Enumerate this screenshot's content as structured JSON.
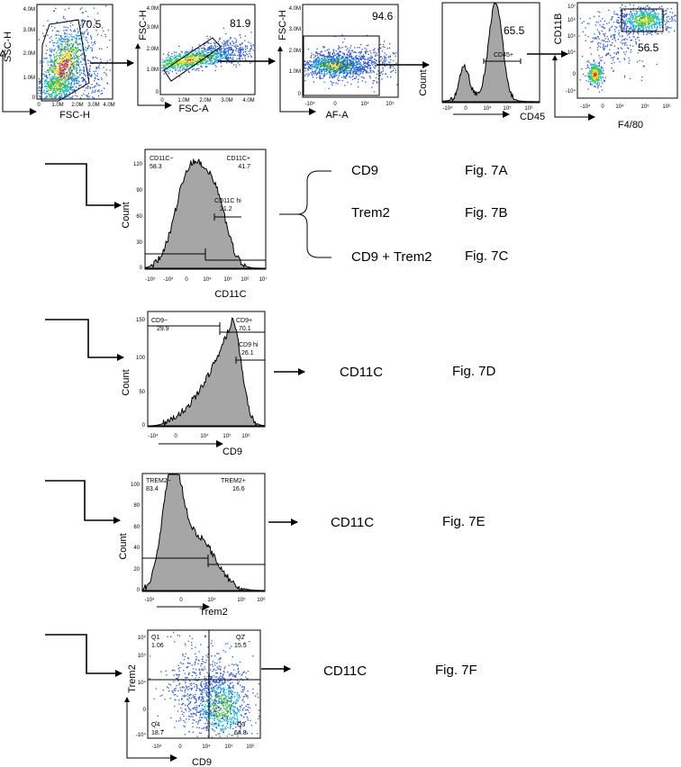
{
  "colors": {
    "dot_blue": "#2f59c8",
    "dot_cyan": "#1fb7d6",
    "dot_green": "#49c24a",
    "dot_yellow": "#e7da2d",
    "dot_red": "#e23a25",
    "histogram_fill": "#a6a6a6"
  },
  "gating_row": [
    {
      "id": "p1",
      "ylabel": "SSC-H",
      "xlabel": "FSC-H",
      "percent": "70.5",
      "yticks": [
        "4.0M",
        "3.0M",
        "2.0M",
        "1.0M",
        "0"
      ],
      "xticks": [
        "0",
        "1.0M",
        "2.0M",
        "3.0M",
        "4.0M"
      ]
    },
    {
      "id": "p2",
      "ylabel": "FSC-H",
      "xlabel": "FSC-A",
      "percent": "81.9",
      "yticks": [
        "4.0M",
        "3.0M",
        "2.0M",
        "1.0M",
        "0"
      ],
      "xticks": [
        "0",
        "1.0M",
        "2.0M",
        "3.0M",
        "4.0M"
      ]
    },
    {
      "id": "p3",
      "ylabel": "FSC-H",
      "xlabel": "AF-A",
      "percent": "94.6",
      "yticks": [
        "4.0M",
        "3.0M",
        "2.0M",
        "1.0M",
        "0"
      ],
      "xticks": [
        "-10⁴",
        "0",
        "10⁴",
        "10⁵"
      ]
    },
    {
      "id": "p4",
      "ylabel": "Count",
      "xlabel": "CD45",
      "percent": "65.5",
      "gate_label": "CD45+",
      "xticks": [
        "-10⁴",
        "0",
        "10⁴",
        "10⁵",
        "10⁶"
      ]
    },
    {
      "id": "p5",
      "ylabel": "CD11B",
      "xlabel": "F4/80",
      "percent": "56.5",
      "yticks": [
        "10⁷",
        "10⁶",
        "10⁵",
        "10⁴",
        "0",
        "-10⁴"
      ],
      "xticks": [
        "-10⁴",
        "0",
        "10⁴",
        "10⁵",
        "10⁶"
      ]
    }
  ],
  "hist_cd11c": {
    "ylabel": "Count",
    "xlabel": "CD11C",
    "yticks": [
      "120",
      "90",
      "60",
      "30",
      "0"
    ],
    "xticks": [
      "-10⁵",
      "-10⁴",
      "0",
      "10⁴",
      "10⁵",
      "10⁶",
      "10⁷"
    ],
    "gates": [
      {
        "name": "CD11C−",
        "value": "58.3"
      },
      {
        "name": "CD11C+",
        "value": "41.7"
      },
      {
        "name": "CD11C hi",
        "value": "21.2"
      }
    ]
  },
  "hist_cd9": {
    "ylabel": "Count",
    "xlabel": "CD9",
    "yticks": [
      "150",
      "100",
      "50",
      "0"
    ],
    "xticks": [
      "-10⁴",
      "0",
      "10⁴",
      "10⁵",
      "10⁶"
    ],
    "gates": [
      {
        "name": "CD9−",
        "value": "29.9"
      },
      {
        "name": "CD9+",
        "value": "70.1"
      },
      {
        "name": "CD9 hi",
        "value": "26.1"
      }
    ]
  },
  "hist_trem2": {
    "ylabel": "Count",
    "xlabel": "Trem2",
    "yticks": [
      "100",
      "80",
      "60",
      "40",
      "20",
      "0"
    ],
    "xticks": [
      "-10⁴",
      "0",
      "10⁴",
      "10⁵",
      "10⁶"
    ],
    "gates": [
      {
        "name": "TREM2−",
        "value": "83.4"
      },
      {
        "name": "TREM2+",
        "value": "16.6"
      }
    ]
  },
  "scatter_quadrant": {
    "ylabel": "Trem2",
    "xlabel": "CD9",
    "yticks": [
      "10⁶",
      "10⁵",
      "10⁴",
      "0",
      "-10⁴"
    ],
    "xticks": [
      "-10⁴",
      "0",
      "10⁴",
      "10⁵",
      "10⁶"
    ],
    "quadrants": [
      {
        "name": "Q1",
        "value": "1.06"
      },
      {
        "name": "Q2",
        "value": "15.5"
      },
      {
        "name": "Q3",
        "value": "64.8"
      },
      {
        "name": "Q4",
        "value": "18.7"
      }
    ]
  },
  "outputs": {
    "row1": [
      {
        "label": "CD9",
        "fig": "Fig. 7A"
      },
      {
        "label": "Trem2",
        "fig": "Fig. 7B"
      },
      {
        "label": "CD9 + Trem2",
        "fig": "Fig. 7C"
      }
    ],
    "row2": {
      "label": "CD11C",
      "fig": "Fig. 7D"
    },
    "row3": {
      "label": "CD11C",
      "fig": "Fig. 7E"
    },
    "row4": {
      "label": "CD11C",
      "fig": "Fig. 7F"
    }
  }
}
